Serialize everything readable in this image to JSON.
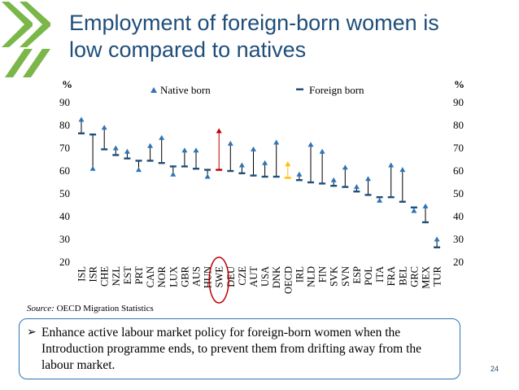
{
  "title_lines": [
    "Employment of foreign-born women is",
    "low compared to natives"
  ],
  "source_label": "Source:",
  "source_text": " OECD Migration Statistics",
  "callout_text": "Enhance active labour market policy for foreign-born women when the Introduction programme ends, to prevent them from drifting away from the labour market.",
  "page_number": "24",
  "colors": {
    "title": "#1f4e79",
    "native_marker": "#2e75b6",
    "foreign_marker": "#1f4e79",
    "highlight_swe": "#c00000",
    "highlight_oecd": "#ffc000",
    "logo_green": "#7ab648",
    "callout_border": "#2e74b5"
  },
  "chart_data": {
    "type": "scatter",
    "ylabel_left": "%",
    "ylabel_right": "%",
    "ylim": [
      20,
      90
    ],
    "yticks": [
      20,
      30,
      40,
      50,
      60,
      70,
      80,
      90
    ],
    "legend": [
      "Native born",
      "Foreign born"
    ],
    "legend_position": "top",
    "grid": false,
    "highlighted_category": "SWE",
    "categories": [
      "ISL",
      "ISR",
      "CHE",
      "NZL",
      "EST",
      "PRT",
      "CAN",
      "NOR",
      "LUX",
      "GBR",
      "AUS",
      "HUN",
      "SWE",
      "DEU",
      "CZE",
      "AUT",
      "USA",
      "DNK",
      "OECD",
      "IRL",
      "NLD",
      "FIN",
      "SVK",
      "SVN",
      "ESP",
      "POL",
      "ITA",
      "FRA",
      "BEL",
      "GRC",
      "MEX",
      "TUR"
    ],
    "series": [
      {
        "name": "Native born",
        "marker": "triangle",
        "values": [
          82.5,
          61,
          79,
          70,
          68.5,
          60.5,
          71,
          74.5,
          58.5,
          69,
          69,
          57.5,
          77.5,
          72,
          62.5,
          69.5,
          63.5,
          72.5,
          63,
          58.5,
          71.5,
          68.5,
          56,
          61.5,
          53,
          56.5,
          47,
          62.5,
          60.5,
          42.5,
          44.5,
          30
        ]
      },
      {
        "name": "Foreign born",
        "marker": "dash",
        "values": [
          76.5,
          76,
          69.5,
          67,
          65.5,
          64.5,
          64.5,
          63.5,
          62,
          62,
          61,
          60.5,
          60.5,
          60,
          59,
          58,
          57.5,
          57.5,
          57,
          56,
          55,
          54.5,
          53.5,
          53,
          51,
          49.5,
          48.5,
          48.5,
          46.5,
          44,
          37.5,
          26.5
        ]
      }
    ]
  }
}
